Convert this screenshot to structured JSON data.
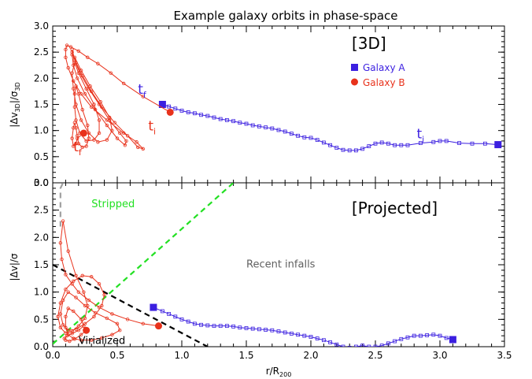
{
  "title": "Example galaxy orbits in phase-space",
  "colors": {
    "galaxy_a": "#3b1fe0",
    "galaxy_b": "#e8321c",
    "stripped_line": "#22e022",
    "virial_line": "#000000",
    "axis": "#000000",
    "gray": "#808080"
  },
  "chart_data": [
    {
      "type": "line",
      "panel": "top",
      "panel_label": "[3D]",
      "title": "Example galaxy orbits in phase-space",
      "xlabel": "",
      "ylabel": "|Δv₃D|/σ₃D",
      "ylabel_main": "|Δv",
      "ylabel_sub1": "3D",
      "ylabel_mid": "|/σ",
      "ylabel_sub2": "3D",
      "xlim": [
        0,
        3.5
      ],
      "ylim": [
        0,
        3.0
      ],
      "xticks": [
        0.0,
        0.5,
        1.0,
        1.5,
        2.0,
        2.5,
        3.0,
        3.5
      ],
      "xtick_labels": [
        "",
        "",
        "",
        "",
        "",
        "",
        "",
        ""
      ],
      "yticks": [
        0.0,
        0.5,
        1.0,
        1.5,
        2.0,
        2.5,
        3.0
      ],
      "ytick_labels": [
        "0.0",
        "0.5",
        "1.0",
        "1.5",
        "2.0",
        "2.5",
        "3.0"
      ],
      "legend": {
        "position": "top-right",
        "items": [
          {
            "label": "Galaxy A",
            "marker": "square",
            "color": "#3b1fe0"
          },
          {
            "label": "Galaxy B",
            "marker": "circle",
            "color": "#e8321c"
          }
        ]
      },
      "series": [
        {
          "name": "Galaxy A",
          "color": "#3b1fe0",
          "x": [
            3.45,
            3.35,
            3.25,
            3.15,
            3.05,
            3.0,
            2.95,
            2.85,
            2.75,
            2.7,
            2.65,
            2.6,
            2.55,
            2.5,
            2.45,
            2.4,
            2.35,
            2.3,
            2.25,
            2.2,
            2.15,
            2.1,
            2.05,
            2.0,
            1.95,
            1.9,
            1.85,
            1.8,
            1.75,
            1.7,
            1.65,
            1.6,
            1.55,
            1.5,
            1.45,
            1.4,
            1.35,
            1.3,
            1.25,
            1.2,
            1.15,
            1.1,
            1.05,
            1.0,
            0.95,
            0.9,
            0.85
          ],
          "y": [
            0.73,
            0.75,
            0.75,
            0.76,
            0.8,
            0.8,
            0.78,
            0.76,
            0.72,
            0.72,
            0.72,
            0.75,
            0.77,
            0.75,
            0.7,
            0.65,
            0.62,
            0.62,
            0.63,
            0.67,
            0.72,
            0.77,
            0.82,
            0.86,
            0.87,
            0.9,
            0.94,
            0.98,
            1.01,
            1.04,
            1.06,
            1.08,
            1.1,
            1.13,
            1.15,
            1.18,
            1.2,
            1.22,
            1.25,
            1.28,
            1.3,
            1.33,
            1.35,
            1.38,
            1.42,
            1.46,
            1.5
          ]
        },
        {
          "name": "Galaxy B",
          "color": "#e8321c",
          "x": [
            0.91,
            0.7,
            0.55,
            0.45,
            0.35,
            0.27,
            0.2,
            0.14,
            0.11,
            0.1,
            0.1,
            0.12,
            0.16,
            0.22,
            0.3,
            0.42,
            0.55,
            0.65,
            0.7,
            0.66,
            0.58,
            0.48,
            0.38,
            0.3,
            0.23,
            0.18,
            0.15,
            0.15,
            0.17,
            0.21,
            0.28,
            0.36,
            0.44,
            0.52,
            0.57,
            0.56,
            0.5,
            0.42,
            0.33,
            0.25,
            0.19,
            0.16,
            0.15,
            0.17,
            0.22,
            0.29,
            0.37,
            0.44,
            0.46,
            0.42,
            0.35,
            0.28,
            0.22,
            0.18,
            0.16,
            0.15,
            0.17,
            0.2,
            0.26,
            0.32,
            0.36,
            0.36,
            0.32,
            0.26,
            0.21,
            0.18,
            0.17,
            0.17,
            0.18,
            0.2,
            0.23,
            0.27,
            0.28,
            0.26,
            0.23,
            0.2,
            0.19,
            0.18,
            0.17,
            0.16,
            0.15,
            0.16,
            0.18,
            0.19,
            0.24
          ],
          "y": [
            1.35,
            1.65,
            1.9,
            2.1,
            2.28,
            2.4,
            2.52,
            2.6,
            2.63,
            2.55,
            2.4,
            2.2,
            1.95,
            1.7,
            1.45,
            1.2,
            0.95,
            0.78,
            0.65,
            0.68,
            0.9,
            1.15,
            1.45,
            1.75,
            2.05,
            2.3,
            2.5,
            2.55,
            2.35,
            2.1,
            1.8,
            1.5,
            1.2,
            0.95,
            0.8,
            0.72,
            0.85,
            1.1,
            1.4,
            1.7,
            2.0,
            2.25,
            2.45,
            2.4,
            2.15,
            1.85,
            1.55,
            1.25,
            1.0,
            0.82,
            0.78,
            0.95,
            1.2,
            1.5,
            1.8,
            2.1,
            2.3,
            2.1,
            1.8,
            1.5,
            1.2,
            0.95,
            0.82,
            0.8,
            0.95,
            1.2,
            1.45,
            1.7,
            1.85,
            1.7,
            1.4,
            1.1,
            0.85,
            0.7,
            0.68,
            0.75,
            0.9,
            1.05,
            1.15,
            1.05,
            0.85,
            0.7,
            0.75,
            0.85,
            0.95
          ]
        }
      ],
      "annotations": [
        {
          "text": "t",
          "sub": "f",
          "x": 0.66,
          "y": 1.7,
          "color": "#3b1fe0"
        },
        {
          "text": "t",
          "sub": "i",
          "x": 0.74,
          "y": 1.0,
          "color": "#e8321c"
        },
        {
          "text": "t",
          "sub": "f",
          "x": 0.16,
          "y": 0.6,
          "color": "#e8321c"
        },
        {
          "text": "t",
          "sub": "i",
          "x": 2.82,
          "y": 0.85,
          "color": "#3b1fe0"
        }
      ]
    },
    {
      "type": "line",
      "panel": "bottom",
      "panel_label": "[Projected]",
      "title": "",
      "xlabel": "r/R₂₀₀",
      "xlabel_main": "r/R",
      "xlabel_sub": "200",
      "ylabel": "|Δv|/σ",
      "xlim": [
        0,
        3.5
      ],
      "ylim": [
        0,
        3.0
      ],
      "xticks": [
        0.0,
        0.5,
        1.0,
        1.5,
        2.0,
        2.5,
        3.0,
        3.5
      ],
      "xtick_labels": [
        "0.0",
        "0.5",
        "1.0",
        "1.5",
        "2.0",
        "2.5",
        "3.0",
        "3.5"
      ],
      "yticks": [
        0.0,
        0.5,
        1.0,
        1.5,
        2.0,
        2.5,
        3.0
      ],
      "ytick_labels": [
        "0.0",
        "0.5",
        "1.0",
        "1.5",
        "2.0",
        "2.5",
        "3.0"
      ],
      "region_labels": [
        {
          "text": "Stripped",
          "x": 0.3,
          "y": 2.55,
          "color": "#22e022"
        },
        {
          "text": "Recent infalls",
          "x": 1.5,
          "y": 1.45,
          "color": "#606060"
        },
        {
          "text": "Virialized",
          "x": 0.2,
          "y": 0.05,
          "color": "#000000"
        }
      ],
      "lines": [
        {
          "name": "stripped-boundary",
          "style": "dashed",
          "color": "#22e022",
          "x": [
            0.0,
            1.4
          ],
          "y": [
            0.05,
            3.0
          ]
        },
        {
          "name": "virialized-boundary",
          "style": "dashed",
          "color": "#000000",
          "x": [
            0.0,
            1.2
          ],
          "y": [
            1.5,
            0.0
          ]
        },
        {
          "name": "gray-dashed-limit",
          "style": "dashed",
          "color": "#a0a0a0",
          "x": [
            0.06,
            0.06,
            0.08
          ],
          "y": [
            2.2,
            2.9,
            3.0
          ]
        }
      ],
      "series": [
        {
          "name": "Galaxy A",
          "color": "#3b1fe0",
          "x": [
            3.1,
            3.05,
            3.0,
            2.95,
            2.9,
            2.85,
            2.8,
            2.75,
            2.7,
            2.65,
            2.6,
            2.55,
            2.5,
            2.45,
            2.4,
            2.35,
            2.3,
            2.25,
            2.2,
            2.15,
            2.1,
            2.05,
            2.0,
            1.95,
            1.9,
            1.85,
            1.8,
            1.75,
            1.7,
            1.65,
            1.6,
            1.55,
            1.5,
            1.45,
            1.4,
            1.35,
            1.3,
            1.25,
            1.2,
            1.15,
            1.1,
            1.05,
            1.0,
            0.95,
            0.9,
            0.85,
            0.78
          ],
          "y": [
            0.13,
            0.16,
            0.2,
            0.22,
            0.21,
            0.2,
            0.2,
            0.17,
            0.14,
            0.1,
            0.06,
            0.02,
            0.0,
            0.0,
            0.02,
            0.0,
            -0.02,
            0.0,
            0.04,
            0.08,
            0.12,
            0.15,
            0.18,
            0.2,
            0.22,
            0.24,
            0.26,
            0.28,
            0.3,
            0.31,
            0.32,
            0.33,
            0.34,
            0.35,
            0.37,
            0.38,
            0.38,
            0.38,
            0.39,
            0.4,
            0.42,
            0.46,
            0.5,
            0.55,
            0.6,
            0.65,
            0.72
          ]
        },
        {
          "name": "Galaxy B",
          "color": "#e8321c",
          "x": [
            0.82,
            0.7,
            0.58,
            0.46,
            0.36,
            0.28,
            0.2,
            0.15,
            0.1,
            0.07,
            0.06,
            0.08,
            0.12,
            0.18,
            0.24,
            0.27,
            0.25,
            0.2,
            0.15,
            0.1,
            0.06,
            0.04,
            0.06,
            0.1,
            0.16,
            0.23,
            0.3,
            0.36,
            0.4,
            0.38,
            0.32,
            0.25,
            0.18,
            0.12,
            0.08,
            0.06,
            0.08,
            0.12,
            0.18,
            0.25,
            0.33,
            0.42,
            0.5,
            0.52,
            0.46,
            0.38,
            0.3,
            0.22,
            0.16,
            0.12,
            0.1,
            0.1,
            0.12,
            0.16,
            0.22,
            0.24,
            0.2,
            0.15,
            0.11,
            0.09,
            0.1,
            0.13,
            0.17,
            0.22,
            0.26
          ],
          "y": [
            0.38,
            0.42,
            0.5,
            0.6,
            0.72,
            0.85,
            1.0,
            1.15,
            1.32,
            1.6,
            1.9,
            2.3,
            1.75,
            1.3,
            1.0,
            0.75,
            0.52,
            0.38,
            0.28,
            0.25,
            0.35,
            0.55,
            0.8,
            1.05,
            1.2,
            1.3,
            1.28,
            1.15,
            0.95,
            0.75,
            0.55,
            0.42,
            0.32,
            0.3,
            0.4,
            0.6,
            0.85,
            1.0,
            0.9,
            0.75,
            0.62,
            0.52,
            0.42,
            0.3,
            0.22,
            0.16,
            0.12,
            0.12,
            0.15,
            0.22,
            0.35,
            0.55,
            0.7,
            0.65,
            0.5,
            0.38,
            0.3,
            0.24,
            0.2,
            0.15,
            0.12,
            0.1,
            0.14,
            0.22,
            0.3
          ]
        }
      ]
    }
  ]
}
